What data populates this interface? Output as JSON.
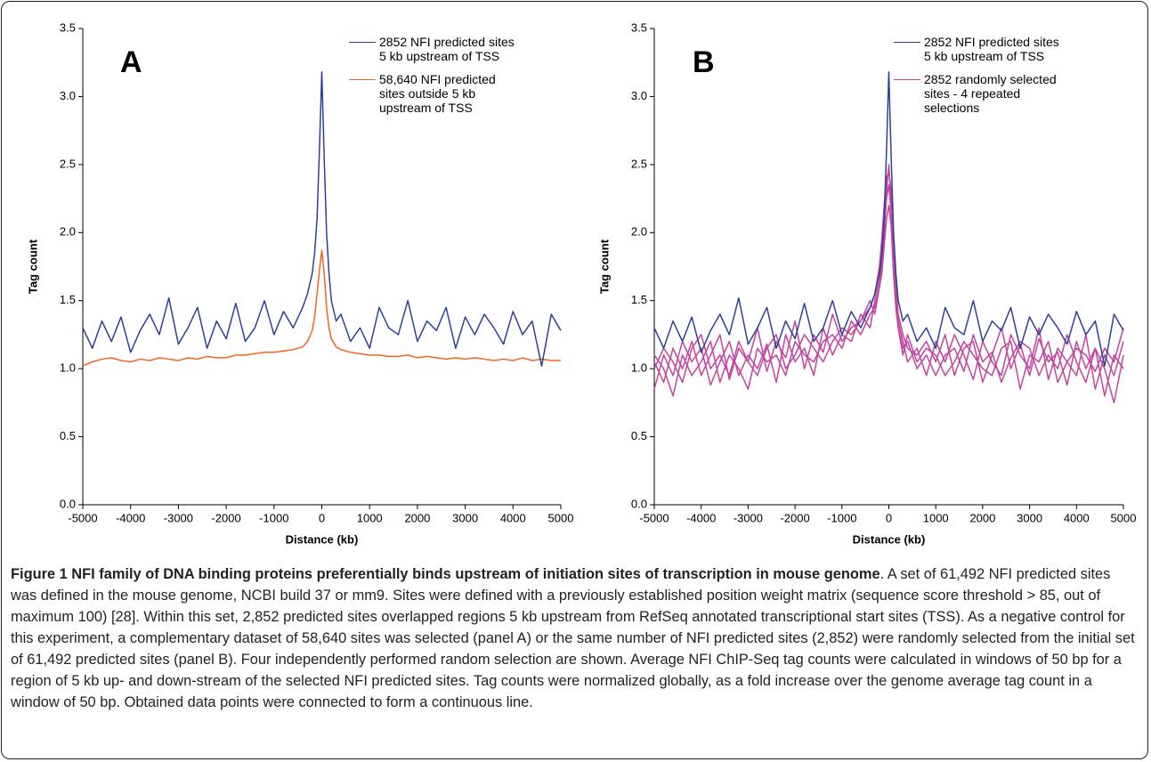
{
  "chart_data": [
    {
      "type": "line",
      "annotation": "A",
      "x_label": "Distance (kb)",
      "y_label": "Tag count",
      "x": [
        -5000,
        -4800,
        -4600,
        -4400,
        -4200,
        -4000,
        -3800,
        -3600,
        -3400,
        -3200,
        -3000,
        -2800,
        -2600,
        -2400,
        -2200,
        -2000,
        -1800,
        -1600,
        -1400,
        -1200,
        -1000,
        -800,
        -600,
        -400,
        -300,
        -200,
        -150,
        -100,
        -50,
        0,
        50,
        100,
        150,
        200,
        300,
        400,
        600,
        800,
        1000,
        1200,
        1400,
        1600,
        1800,
        2000,
        2200,
        2400,
        2600,
        2800,
        3000,
        3200,
        3400,
        3600,
        3800,
        4000,
        4200,
        4400,
        4600,
        4800,
        5000
      ],
      "xlim": [
        -5000,
        5000
      ],
      "xticks": [
        -5000,
        -4000,
        -3000,
        -2000,
        -1000,
        0,
        1000,
        2000,
        3000,
        4000,
        5000
      ],
      "ylim": [
        0,
        3.5
      ],
      "yticks": [
        {
          "value": 0,
          "label": "0.0"
        },
        0.5,
        {
          "value": 1,
          "label": "1.0"
        },
        1.5,
        {
          "value": 2,
          "label": "2.0"
        },
        2.5,
        {
          "value": 3,
          "label": "3.0"
        },
        3.5
      ],
      "series": [
        {
          "name": "2852 NFI predicted sites\n5 kb upstream of TSS",
          "color": "#2e3f95",
          "values": [
            1.3,
            1.15,
            1.35,
            1.2,
            1.38,
            1.12,
            1.28,
            1.4,
            1.25,
            1.52,
            1.18,
            1.3,
            1.45,
            1.15,
            1.35,
            1.22,
            1.48,
            1.2,
            1.3,
            1.5,
            1.25,
            1.42,
            1.3,
            1.45,
            1.55,
            1.7,
            1.85,
            2.1,
            2.6,
            3.18,
            2.55,
            2.0,
            1.7,
            1.5,
            1.35,
            1.4,
            1.2,
            1.3,
            1.15,
            1.45,
            1.3,
            1.25,
            1.5,
            1.2,
            1.35,
            1.28,
            1.45,
            1.15,
            1.38,
            1.25,
            1.4,
            1.3,
            1.18,
            1.42,
            1.25,
            1.35,
            1.02,
            1.4,
            1.28
          ]
        },
        {
          "name": "58,640 NFI predicted\nsites outside 5 kb\nupstream of TSS",
          "color": "#f26522",
          "values": [
            1.02,
            1.05,
            1.07,
            1.08,
            1.06,
            1.05,
            1.07,
            1.06,
            1.08,
            1.07,
            1.06,
            1.08,
            1.07,
            1.09,
            1.08,
            1.08,
            1.1,
            1.1,
            1.11,
            1.12,
            1.12,
            1.13,
            1.14,
            1.16,
            1.2,
            1.28,
            1.38,
            1.55,
            1.72,
            1.87,
            1.7,
            1.45,
            1.3,
            1.22,
            1.16,
            1.14,
            1.12,
            1.11,
            1.1,
            1.1,
            1.09,
            1.09,
            1.1,
            1.08,
            1.09,
            1.08,
            1.07,
            1.08,
            1.07,
            1.08,
            1.07,
            1.06,
            1.07,
            1.06,
            1.08,
            1.06,
            1.07,
            1.06,
            1.06
          ]
        }
      ]
    },
    {
      "type": "line",
      "annotation": "B",
      "x_label": "Distance (kb)",
      "y_label": "Tag count",
      "x": [
        -5000,
        -4800,
        -4600,
        -4400,
        -4200,
        -4000,
        -3800,
        -3600,
        -3400,
        -3200,
        -3000,
        -2800,
        -2600,
        -2400,
        -2200,
        -2000,
        -1800,
        -1600,
        -1400,
        -1200,
        -1000,
        -800,
        -600,
        -400,
        -300,
        -200,
        -150,
        -100,
        -50,
        0,
        50,
        100,
        150,
        200,
        300,
        400,
        600,
        800,
        1000,
        1200,
        1400,
        1600,
        1800,
        2000,
        2200,
        2400,
        2600,
        2800,
        3000,
        3200,
        3400,
        3600,
        3800,
        4000,
        4200,
        4400,
        4600,
        4800,
        5000
      ],
      "xlim": [
        -5000,
        5000
      ],
      "xticks": [
        -5000,
        -4000,
        -3000,
        -2000,
        -1000,
        0,
        1000,
        2000,
        3000,
        4000,
        5000
      ],
      "ylim": [
        0,
        3.5
      ],
      "yticks": [
        {
          "value": 0,
          "label": "0.0"
        },
        0.5,
        {
          "value": 1,
          "label": "1.0"
        },
        1.5,
        {
          "value": 2,
          "label": "2.0"
        },
        2.5,
        {
          "value": 3,
          "label": "3.0"
        },
        3.5
      ],
      "series": [
        {
          "name": "2852 NFI predicted sites\n5 kb upstream of TSS",
          "color": "#2e3f95",
          "values": [
            1.3,
            1.15,
            1.35,
            1.2,
            1.38,
            1.12,
            1.28,
            1.4,
            1.25,
            1.52,
            1.18,
            1.3,
            1.45,
            1.15,
            1.35,
            1.22,
            1.48,
            1.2,
            1.3,
            1.5,
            1.25,
            1.42,
            1.3,
            1.45,
            1.55,
            1.7,
            1.85,
            2.1,
            2.6,
            3.18,
            2.55,
            2.0,
            1.7,
            1.5,
            1.35,
            1.4,
            1.2,
            1.3,
            1.15,
            1.45,
            1.3,
            1.25,
            1.5,
            1.2,
            1.35,
            1.28,
            1.45,
            1.15,
            1.38,
            1.25,
            1.4,
            1.3,
            1.18,
            1.42,
            1.25,
            1.35,
            1.02,
            1.4,
            1.28
          ]
        },
        {
          "name": "2852 randomly selected\nsites - 4 repeated\nselections",
          "color": "#c2449e",
          "values": [
            1.05,
            0.9,
            1.15,
            1.0,
            1.2,
            0.95,
            1.1,
            1.25,
            0.92,
            1.15,
            1.05,
            1.3,
            0.98,
            1.2,
            1.08,
            1.35,
            1.0,
            1.25,
            1.12,
            1.4,
            1.2,
            1.3,
            1.35,
            1.45,
            1.55,
            1.75,
            1.95,
            2.2,
            2.4,
            2.45,
            2.3,
            1.9,
            1.6,
            1.4,
            1.25,
            1.15,
            1.1,
            1.2,
            1.05,
            1.25,
            0.95,
            1.15,
            1.2,
            0.9,
            1.1,
            1.3,
            1.0,
            1.18,
            0.95,
            1.22,
            1.05,
            1.12,
            0.88,
            1.2,
            1.0,
            1.15,
            0.8,
            1.1,
            1.0
          ]
        },
        {
          "color": "#c2449e",
          "values": [
            0.85,
            1.1,
            0.95,
            1.2,
            1.05,
            1.15,
            0.88,
            1.05,
            1.2,
            0.95,
            1.1,
            1.0,
            1.18,
            0.9,
            1.25,
            1.05,
            1.15,
            0.95,
            1.3,
            1.1,
            1.25,
            1.2,
            1.4,
            1.3,
            1.5,
            1.65,
            1.8,
            2.05,
            2.3,
            2.5,
            2.2,
            1.8,
            1.55,
            1.35,
            1.2,
            1.05,
            1.15,
            0.95,
            1.2,
            1.05,
            1.25,
            1.1,
            0.92,
            1.2,
            1.05,
            0.95,
            1.25,
            1.1,
            1.0,
            1.3,
            0.92,
            1.15,
            1.05,
            0.95,
            1.25,
            0.85,
            1.1,
            0.95,
            1.2
          ]
        },
        {
          "color": "#c2449e",
          "values": [
            1.1,
            1.0,
            0.8,
            1.1,
            0.95,
            1.05,
            1.2,
            0.9,
            1.1,
            1.0,
            0.85,
            1.15,
            1.05,
            1.1,
            0.95,
            1.2,
            1.1,
            1.05,
            1.2,
            1.25,
            1.15,
            1.35,
            1.25,
            1.4,
            1.45,
            1.6,
            1.7,
            1.9,
            2.1,
            2.2,
            2.05,
            1.7,
            1.45,
            1.3,
            1.15,
            1.2,
            1.0,
            1.1,
            0.95,
            1.1,
            1.15,
            0.98,
            1.25,
            1.05,
            1.12,
            0.9,
            1.08,
            1.2,
            1.15,
            0.95,
            1.1,
            1.0,
            1.25,
            1.05,
            0.9,
            1.15,
            1.0,
            0.75,
            1.1
          ]
        },
        {
          "color": "#c2449e",
          "values": [
            1.0,
            1.15,
            1.05,
            0.9,
            1.15,
            1.25,
            1.0,
            1.1,
            0.95,
            1.2,
            1.05,
            0.95,
            1.15,
            1.25,
            1.0,
            1.1,
            1.25,
            1.15,
            1.05,
            1.2,
            1.3,
            1.25,
            1.35,
            1.5,
            1.4,
            1.6,
            1.75,
            2.0,
            2.25,
            2.35,
            2.15,
            1.75,
            1.5,
            1.3,
            1.1,
            1.25,
            1.05,
            1.15,
            1.1,
            0.95,
            1.05,
            1.2,
            1.1,
            1.0,
            0.95,
            1.15,
            1.2,
            0.85,
            1.1,
            1.05,
            1.2,
            0.9,
            1.05,
            1.15,
            1.1,
            0.98,
            1.15,
            1.05,
            1.3
          ]
        }
      ]
    }
  ],
  "caption": {
    "title": "Figure 1 NFI family of DNA binding proteins preferentially binds upstream of initiation sites of transcription in mouse genome",
    "text": ". A set of 61,492 NFI predicted sites was defined in the mouse genome, NCBI build 37 or mm9. Sites were defined with a previously established position weight matrix (sequence score threshold > 85, out of maximum 100) [28]. Within this set, 2,852 predicted sites overlapped regions 5 kb upstream from RefSeq annotated transcriptional start sites (TSS). As a negative control for this experiment, a complementary dataset of 58,640 sites was selected (panel A) or the same number of NFI predicted sites (2,852) were randomly selected from the initial set of 61,492 predicted sites (panel B). Four independently performed random selection are shown. Average NFI ChIP-Seq tag counts were calculated in windows of 50 bp for a region of 5 kb up- and down-stream of the selected NFI predicted sites. Tag counts were normalized globally, as a fold increase over the genome average tag count in a window of 50 bp. Obtained data points were connected to form a continuous line."
  }
}
